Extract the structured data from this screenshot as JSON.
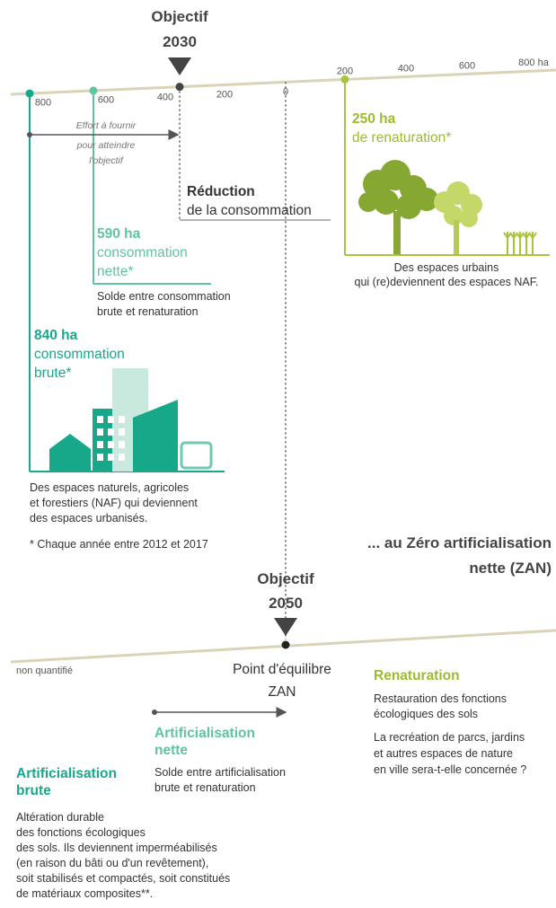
{
  "timeline_2030": {
    "objective_label": "Objectif",
    "objective_year": 2030,
    "scale_left": [
      800,
      600,
      400,
      200,
      0
    ],
    "scale_right": [
      200,
      400,
      600,
      "800 ha"
    ]
  },
  "effort": [
    "Effort à fournir",
    "pour atteindre",
    "l'objectif"
  ],
  "reduction": [
    "Réduction",
    "de la consommation"
  ],
  "renaturation_250": {
    "amount": "250 ha",
    "label": "de renaturation*",
    "caption": [
      "Des espaces urbains",
      "qui (re)deviennent des espaces NAF."
    ]
  },
  "net_590": {
    "amount": "590 ha",
    "label": [
      "consommation",
      "nette*"
    ],
    "caption": [
      "Solde entre consommation",
      "brute et renaturation"
    ]
  },
  "gross_840": {
    "amount": "840 ha",
    "label": [
      "consommation",
      "brute*"
    ],
    "caption": [
      "Des espaces naturels, agricoles",
      "et forestiers (NAF) qui deviennent",
      "des espaces urbanisés."
    ]
  },
  "footnote": "* Chaque année entre 2012 et 2017",
  "zan_heading": [
    "... au Zéro artificialisation",
    "nette (ZAN)"
  ],
  "timeline_2050": {
    "objective_label": "Objectif",
    "objective_year": 2050,
    "left_label": "non quantifié",
    "equilibrium": [
      "Point d'équilibre",
      "ZAN"
    ]
  },
  "net_artificialisation": {
    "title": [
      "Artificialisation",
      "nette"
    ],
    "text": [
      "Solde entre artificialisation",
      "brute et renaturation"
    ]
  },
  "gross_artificialisation": {
    "title": [
      "Artificialisation",
      "brute"
    ],
    "text": [
      "Altération durable",
      "des fonctions écologiques",
      "des sols. Ils deviennent imperméabilisés",
      "(en raison du bâti ou d'un revêtement),",
      "soit stabilisés et compactés, soit constitués",
      "de matériaux composites**."
    ]
  },
  "renaturation": {
    "title": "Renaturation",
    "text1": [
      "Restauration des fonctions",
      "écologiques des sols"
    ],
    "text2": [
      "La recréation de parcs, jardins",
      "et autres espaces de nature",
      "en ville sera-t-elle concernée ?"
    ]
  }
}
